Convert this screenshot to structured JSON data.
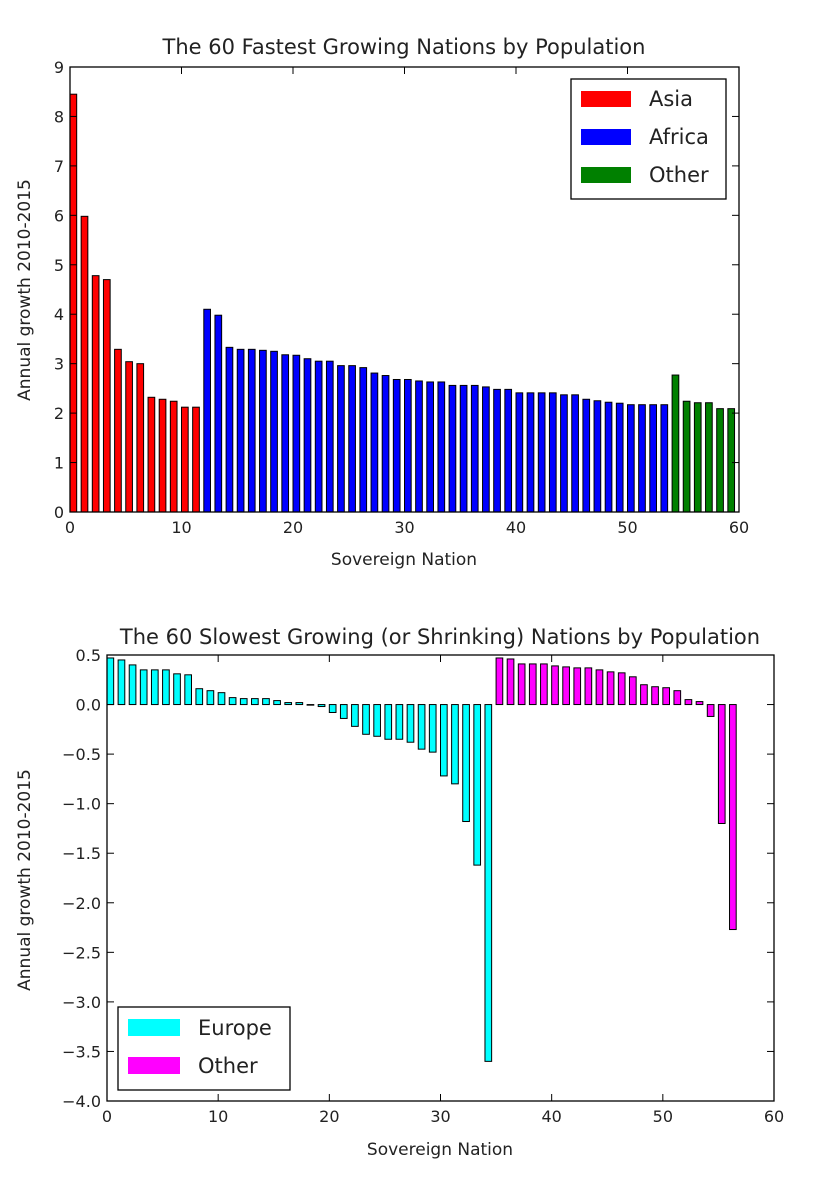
{
  "chart_data": [
    {
      "type": "bar",
      "title": "The 60 Fastest Growing Nations by Population",
      "xlabel": "Sovereign Nation",
      "ylabel": "Annual growth 2010-2015",
      "xlim": [
        0,
        60
      ],
      "ylim": [
        0,
        9
      ],
      "xticks": [
        "0",
        "10",
        "20",
        "30",
        "40",
        "50",
        "60"
      ],
      "yticks": [
        "0",
        "1",
        "2",
        "3",
        "4",
        "5",
        "6",
        "7",
        "8",
        "9"
      ],
      "grid": false,
      "legend_position": "top-right",
      "legend": [
        {
          "label": "Asia",
          "color": "#ff0000"
        },
        {
          "label": "Africa",
          "color": "#0000ff"
        },
        {
          "label": "Other",
          "color": "#008000"
        }
      ],
      "series": [
        {
          "name": "Asia",
          "color": "#ff0000",
          "x": [
            0,
            1,
            2,
            3,
            4,
            5,
            6,
            7,
            8,
            9,
            10,
            11
          ],
          "values": [
            8.45,
            5.98,
            4.78,
            4.7,
            3.29,
            3.04,
            3.0,
            2.32,
            2.28,
            2.24,
            2.12,
            2.12
          ]
        },
        {
          "name": "Africa",
          "color": "#0000ff",
          "x": [
            12,
            13,
            14,
            15,
            16,
            17,
            18,
            19,
            20,
            21,
            22,
            23,
            24,
            25,
            26,
            27,
            28,
            29,
            30,
            31,
            32,
            33,
            34,
            35,
            36,
            37,
            38,
            39,
            40,
            41,
            42,
            43,
            44,
            45,
            46,
            47,
            48,
            49,
            50,
            51,
            52,
            53
          ],
          "values": [
            4.1,
            3.98,
            3.33,
            3.29,
            3.29,
            3.27,
            3.25,
            3.18,
            3.17,
            3.1,
            3.05,
            3.05,
            2.96,
            2.96,
            2.92,
            2.81,
            2.76,
            2.68,
            2.68,
            2.65,
            2.63,
            2.63,
            2.56,
            2.56,
            2.56,
            2.53,
            2.48,
            2.48,
            2.41,
            2.41,
            2.41,
            2.41,
            2.37,
            2.37,
            2.28,
            2.25,
            2.22,
            2.2,
            2.17,
            2.17,
            2.17,
            2.17
          ]
        },
        {
          "name": "Other",
          "color": "#008000",
          "x": [
            54,
            55,
            56,
            57,
            58,
            59
          ],
          "values": [
            2.77,
            2.24,
            2.21,
            2.21,
            2.09,
            2.09
          ]
        }
      ]
    },
    {
      "type": "bar",
      "title": "The 60 Slowest Growing (or Shrinking) Nations by Population",
      "xlabel": "Sovereign Nation",
      "ylabel": "Annual growth 2010-2015",
      "xlim": [
        0,
        60
      ],
      "ylim": [
        -4.0,
        0.5
      ],
      "xticks": [
        "0",
        "10",
        "20",
        "30",
        "40",
        "50",
        "60"
      ],
      "yticks": [
        "0.5",
        "0.0",
        "−0.5",
        "−1.0",
        "−1.5",
        "−2.0",
        "−2.5",
        "−3.0",
        "−3.5",
        "−4.0"
      ],
      "grid": false,
      "legend_position": "lower-left",
      "legend": [
        {
          "label": "Europe",
          "color": "#00ffff"
        },
        {
          "label": "Other",
          "color": "#ff00ff"
        }
      ],
      "series": [
        {
          "name": "Europe",
          "color": "#00ffff",
          "x": [
            0,
            1,
            2,
            3,
            4,
            5,
            6,
            7,
            8,
            9,
            10,
            11,
            12,
            13,
            14,
            15,
            16,
            17,
            18,
            19,
            20,
            21,
            22,
            23,
            24,
            25,
            26,
            27,
            28,
            29,
            30,
            31,
            32,
            33,
            34
          ],
          "values": [
            0.47,
            0.45,
            0.4,
            0.35,
            0.35,
            0.35,
            0.31,
            0.3,
            0.16,
            0.14,
            0.12,
            0.07,
            0.06,
            0.06,
            0.06,
            0.04,
            0.02,
            0.02,
            0.0,
            -0.02,
            -0.08,
            -0.14,
            -0.22,
            -0.3,
            -0.32,
            -0.35,
            -0.35,
            -0.38,
            -0.45,
            -0.48,
            -0.72,
            -0.8,
            -1.18,
            -1.62,
            -3.6
          ]
        },
        {
          "name": "Other",
          "color": "#ff00ff",
          "x": [
            35,
            36,
            37,
            38,
            39,
            40,
            41,
            42,
            43,
            44,
            45,
            46,
            47,
            48,
            49,
            50,
            51,
            52,
            53,
            54,
            55,
            56
          ],
          "values": [
            0.47,
            0.46,
            0.41,
            0.41,
            0.41,
            0.39,
            0.38,
            0.37,
            0.37,
            0.35,
            0.33,
            0.32,
            0.28,
            0.2,
            0.18,
            0.17,
            0.14,
            0.05,
            0.03,
            -0.12,
            -1.2,
            -2.27
          ]
        }
      ]
    }
  ]
}
